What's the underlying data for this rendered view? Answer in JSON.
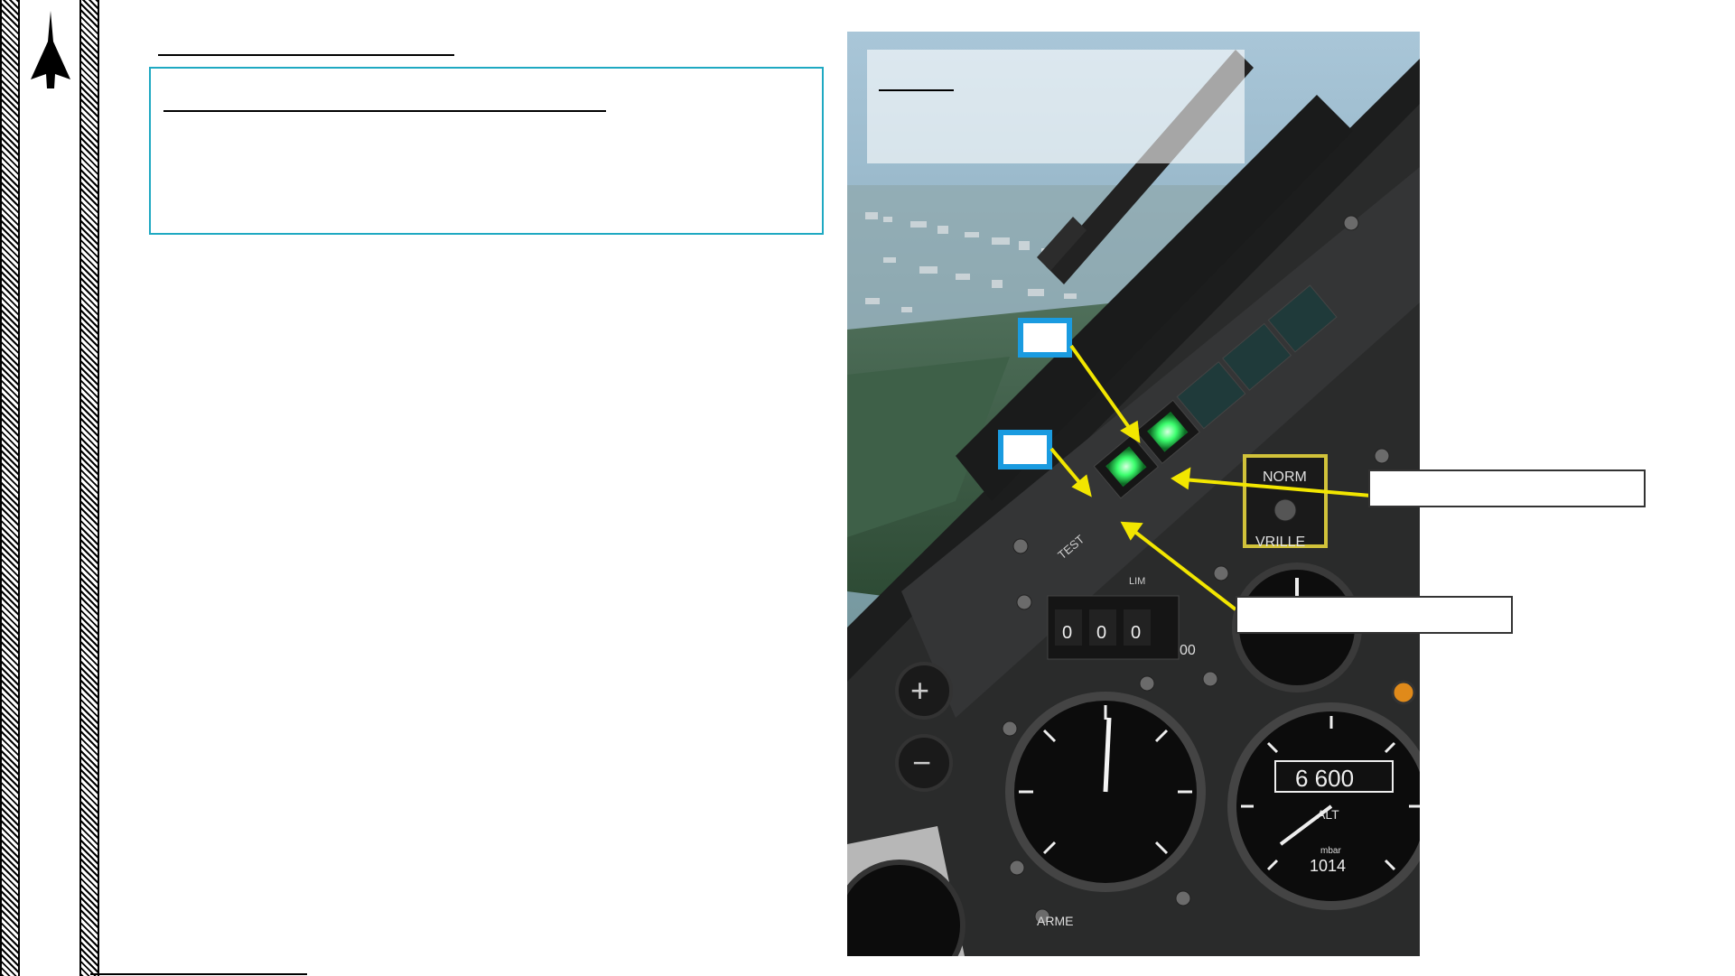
{
  "section": {
    "title": ""
  },
  "info_box": {
    "heading": "",
    "body": ""
  },
  "cockpit": {
    "panel_labels": {
      "norm": "NORM",
      "vrille": "VRILLE",
      "test": "TEST",
      "lim": "LIM",
      "counter": [
        "0",
        "0",
        "0"
      ],
      "counter_suffix": "00",
      "alt": "ALT",
      "mbar": "mbar",
      "alt_readout": "6 600",
      "baro": "1014",
      "arme": "ARME",
      "plus": "+",
      "minus": "−"
    },
    "overlay_title": "",
    "marker_a": "",
    "marker_b": ""
  },
  "callouts": {
    "upper": "",
    "lower": ""
  },
  "colors": {
    "accent_cyan": "#1fa9c2",
    "marker_blue": "#1a9be0",
    "arrow_yellow": "#f2e600",
    "indicator_green": "#3cff6e"
  }
}
